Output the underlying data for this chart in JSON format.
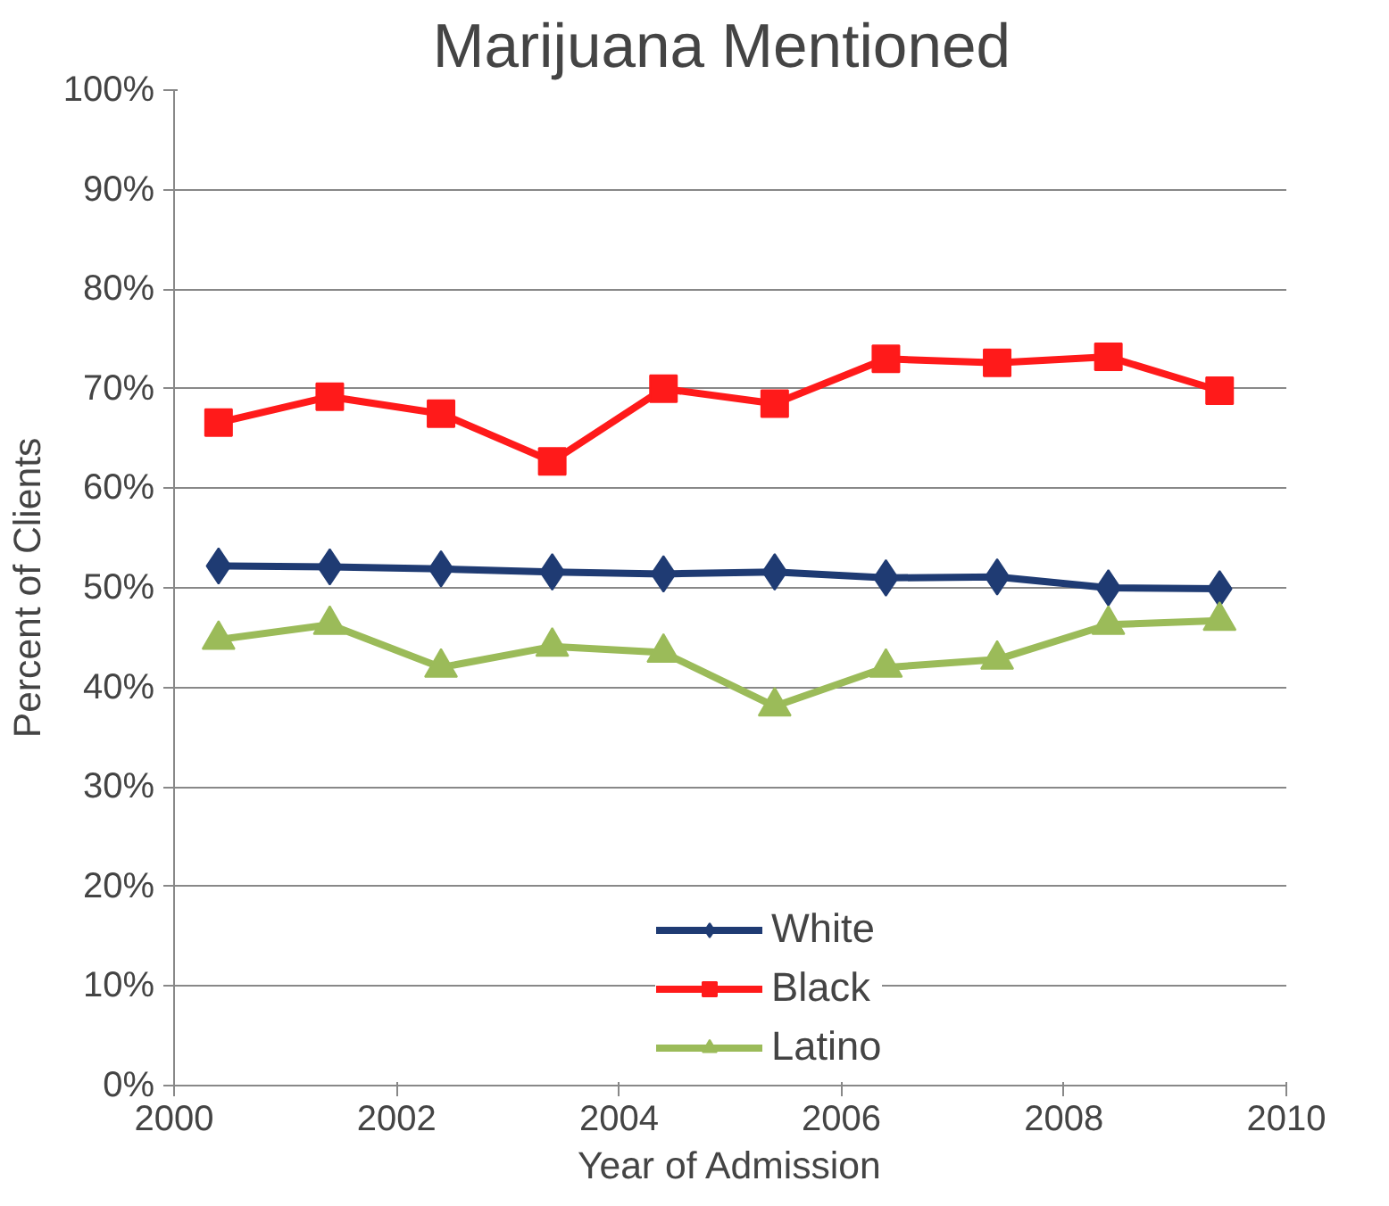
{
  "chart_data": {
    "type": "line",
    "title": "Marijuana  Mentioned",
    "xlabel": "Year of Admission",
    "ylabel": "Percent of Clients",
    "x": [
      2000.4,
      2001.4,
      2002.4,
      2003.4,
      2004.4,
      2005.4,
      2006.4,
      2007.4,
      2008.4,
      2009.4
    ],
    "series": [
      {
        "name": "White",
        "color": "#1f3b73",
        "marker": "diamond",
        "values": [
          52.2,
          52.1,
          51.9,
          51.6,
          51.4,
          51.6,
          51.0,
          51.1,
          50.0,
          49.9
        ]
      },
      {
        "name": "Black",
        "color": "#ff1a1a",
        "marker": "square",
        "values": [
          66.6,
          69.2,
          67.5,
          62.7,
          70.0,
          68.5,
          73.0,
          72.6,
          73.2,
          69.8
        ]
      },
      {
        "name": "Latino",
        "color": "#9bbb59",
        "marker": "triangle",
        "values": [
          44.8,
          46.3,
          42.0,
          44.1,
          43.5,
          38.1,
          42.0,
          42.8,
          46.3,
          46.7
        ]
      }
    ],
    "xlim": [
      2000,
      2010
    ],
    "xticks": [
      2000,
      2002,
      2004,
      2006,
      2008,
      2010
    ],
    "ylim": [
      0,
      100
    ],
    "yticks": [
      {
        "value": 0,
        "label": "0%"
      },
      {
        "value": 10,
        "label": "10%"
      },
      {
        "value": 20,
        "label": "20%"
      },
      {
        "value": 30,
        "label": "30%"
      },
      {
        "value": 40,
        "label": "40%"
      },
      {
        "value": 50,
        "label": "50%"
      },
      {
        "value": 60,
        "label": "60%"
      },
      {
        "value": 70,
        "label": "70%"
      },
      {
        "value": 80,
        "label": "80%"
      },
      {
        "value": 90,
        "label": "90%"
      },
      {
        "value": 100,
        "label": "100%"
      }
    ],
    "grid": "y",
    "legend": "bottom right",
    "line_style": "solid"
  }
}
